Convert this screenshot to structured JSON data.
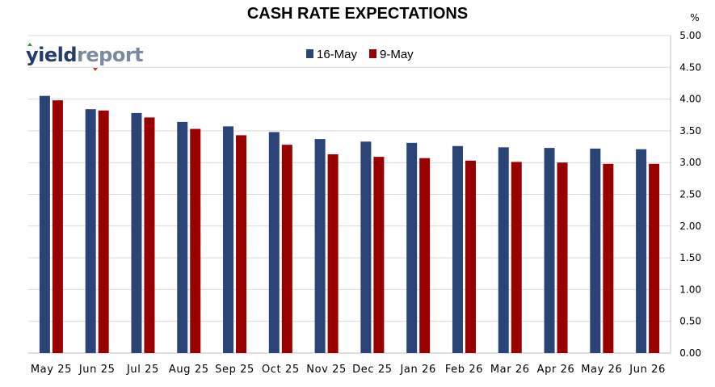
{
  "chart_data": {
    "type": "bar",
    "title": "CASH RATE EXPECTATIONS",
    "ylabel": "%",
    "ylim": [
      0,
      5
    ],
    "yticks": [
      "0.00",
      "0.50",
      "1.00",
      "1.50",
      "2.00",
      "2.50",
      "3.00",
      "3.50",
      "4.00",
      "4.50",
      "5.00"
    ],
    "grid": true,
    "legend_position": "top-center",
    "categories": [
      "May 25",
      "Jun 25",
      "Jul 25",
      "Aug 25",
      "Sep 25",
      "Oct 25",
      "Nov 25",
      "Dec 25",
      "Jan 26",
      "Feb 26",
      "Mar 26",
      "Apr 26",
      "May 26",
      "Jun 26"
    ],
    "series": [
      {
        "name": "16-May",
        "color": "#2a4478",
        "values": [
          4.05,
          3.84,
          3.78,
          3.64,
          3.57,
          3.48,
          3.37,
          3.33,
          3.31,
          3.26,
          3.24,
          3.23,
          3.22,
          3.21
        ]
      },
      {
        "name": "9-May",
        "color": "#990000",
        "values": [
          3.98,
          3.82,
          3.71,
          3.53,
          3.43,
          3.28,
          3.13,
          3.09,
          3.07,
          3.03,
          3.01,
          3.0,
          2.98,
          2.98
        ]
      }
    ]
  },
  "logo": {
    "part1": "yield",
    "part2": "report"
  }
}
